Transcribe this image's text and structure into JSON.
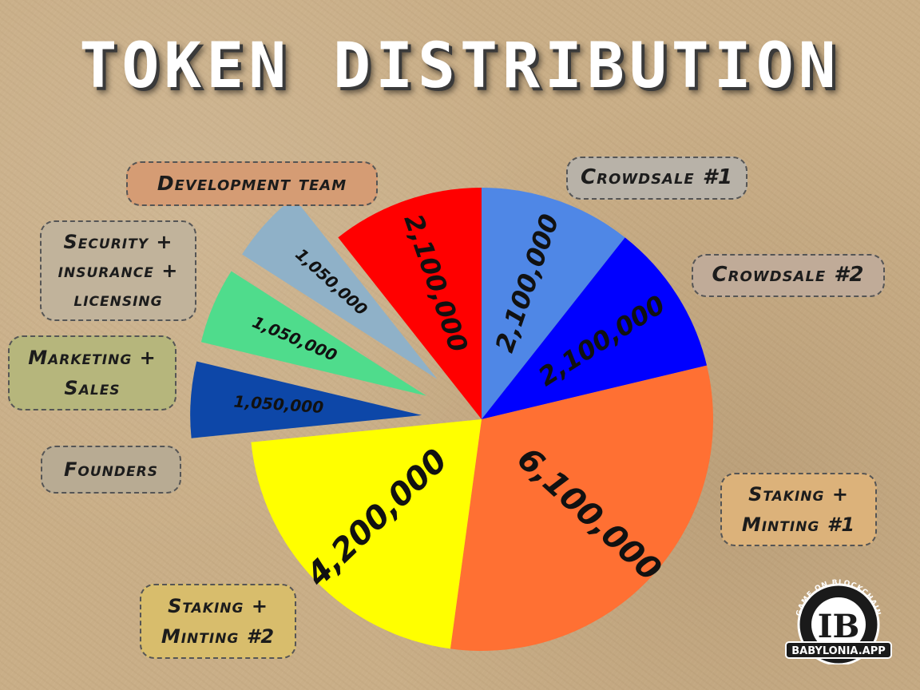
{
  "title": "TOKEN DISTRIBUTION",
  "chart_data": {
    "type": "pie",
    "title": "TOKEN DISTRIBUTION",
    "slices": [
      {
        "name": "Crowdsale #1",
        "value": 2100000,
        "label": "2,100,000",
        "color": "#4f87e6",
        "exploded": false
      },
      {
        "name": "Crowdsale #2",
        "value": 2100000,
        "label": "2,100,000",
        "color": "#0000ff",
        "exploded": false
      },
      {
        "name": "Staking + Minting #1",
        "value": 6100000,
        "label": "6,100,000",
        "color": "#ff7033",
        "exploded": false
      },
      {
        "name": "Staking + Minting #2",
        "value": 4200000,
        "label": "4,200,000",
        "color": "#ffff00",
        "exploded": false
      },
      {
        "name": "Founders",
        "value": 1050000,
        "label": "1,050,000",
        "color": "#0d47a8",
        "exploded": true
      },
      {
        "name": "Marketing + Sales",
        "value": 1050000,
        "label": "1,050,000",
        "color": "#4fdc8c",
        "exploded": true
      },
      {
        "name": "Security + insurance + licensing",
        "value": 1050000,
        "label": "1,050,000",
        "color": "#8fb1c8",
        "exploded": true
      },
      {
        "name": "Development team",
        "value": 2100000,
        "label": "2,100,000",
        "color": "#ff0000",
        "exploded": false
      }
    ]
  },
  "legend_boxes": {
    "crowdsale1": {
      "text": "Crowdsale #1",
      "bg": "#b8b2a8"
    },
    "crowdsale2": {
      "text": "Crowdsale #2",
      "bg": "#c0ab98"
    },
    "staking1": {
      "line1": "Staking +",
      "line2": "Minting #1",
      "bg": "#dcb27a"
    },
    "staking2": {
      "line1": "Staking +",
      "line2": "Minting #2",
      "bg": "#d8bd6c"
    },
    "founders": {
      "text": "Founders",
      "bg": "#b8ab93"
    },
    "marketing": {
      "line1": "Marketing +",
      "line2": "Sales",
      "bg": "#b6b67c"
    },
    "security": {
      "line1": "Security +",
      "line2": "insurance +",
      "line3": "licensing",
      "bg": "#c1b39b"
    },
    "development": {
      "text": "Development team",
      "bg": "#d59c74"
    }
  },
  "logo": {
    "arc_text": "GAME ON BLOCKCHAIN",
    "monogram": "IB",
    "banner": "BABYLONIA.APP"
  }
}
